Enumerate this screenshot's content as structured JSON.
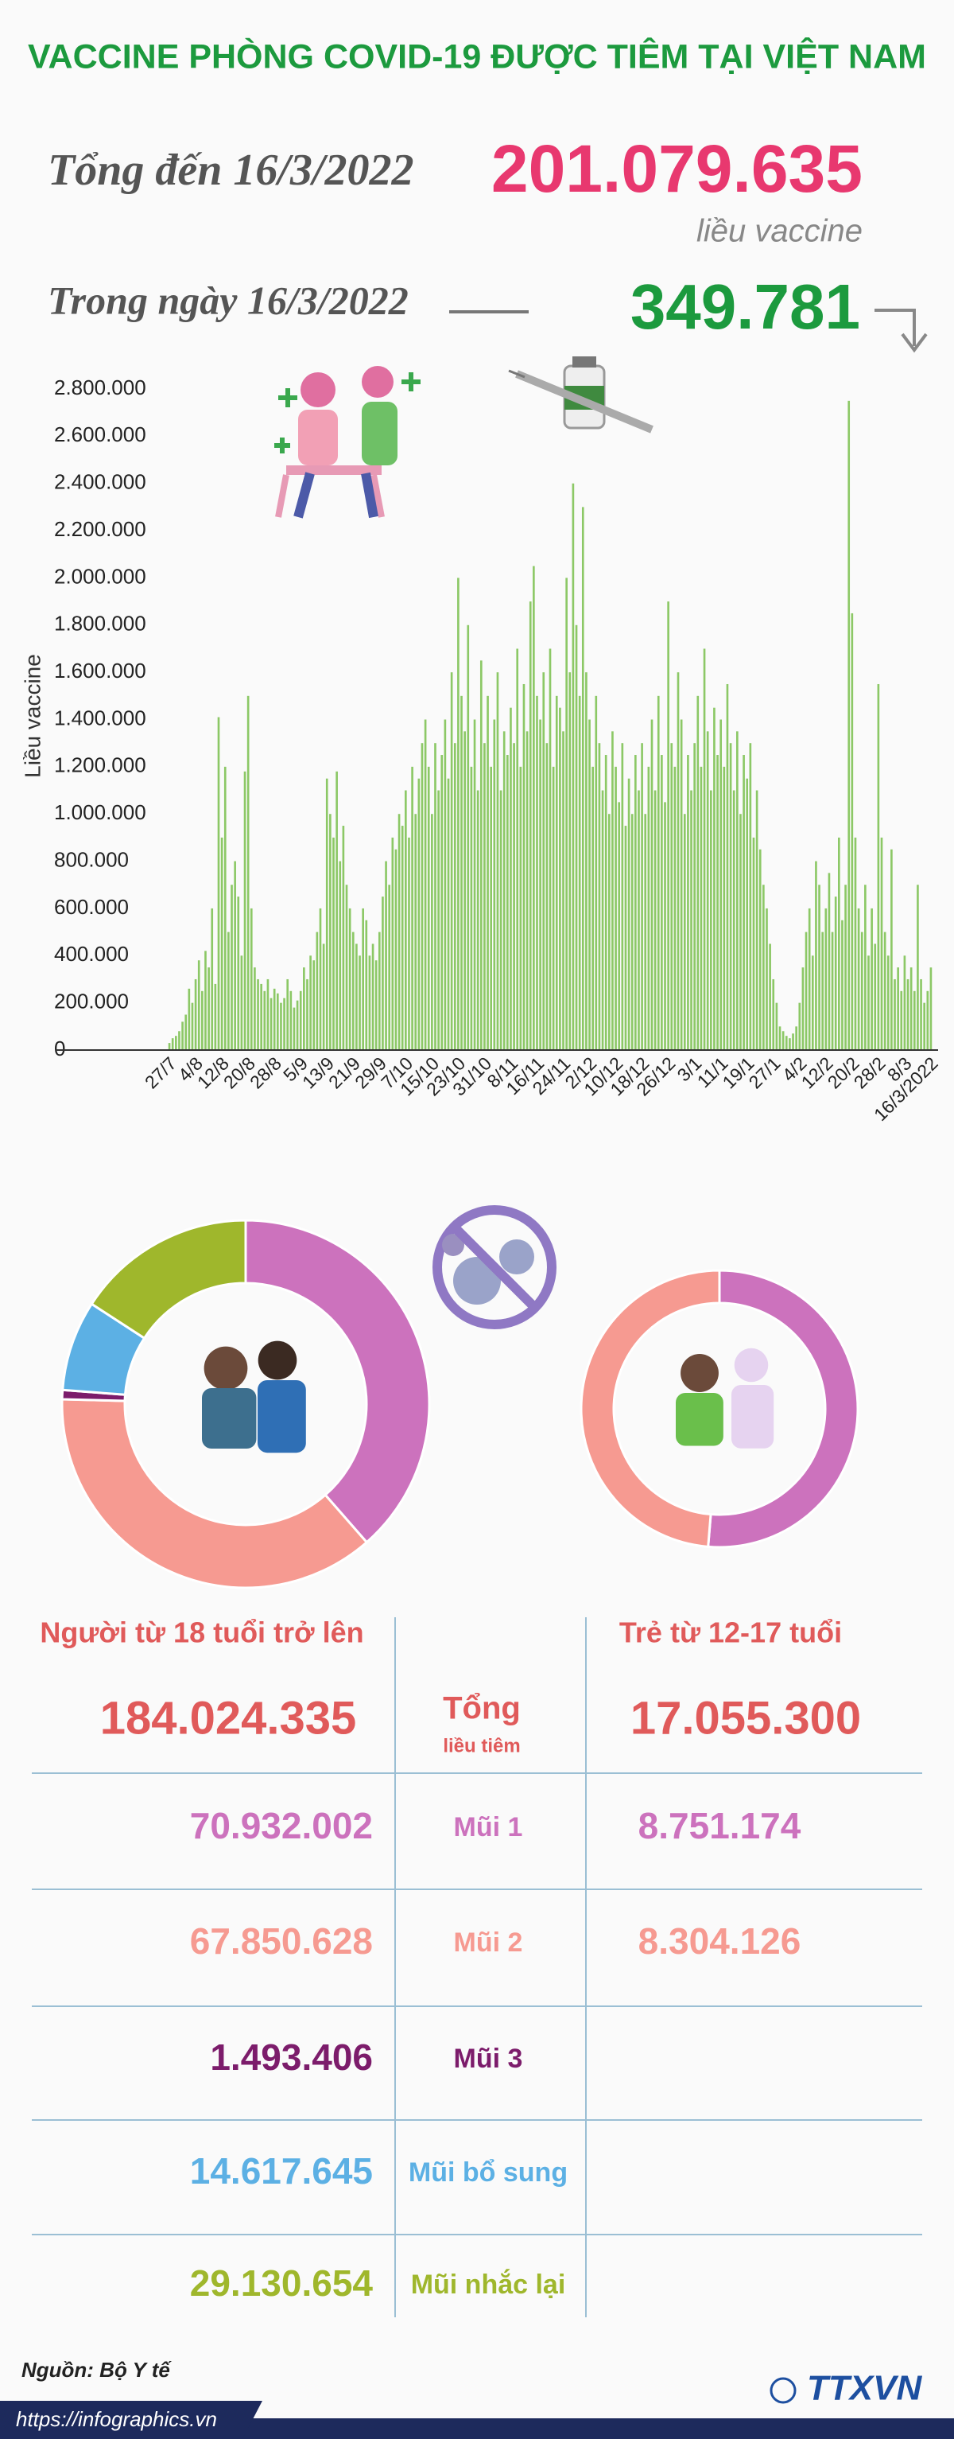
{
  "header": {
    "title": "VACCINE PHÒNG COVID-19 ĐƯỢC TIÊM TẠI VIỆT NAM",
    "total_label": "Tổng đến 16/3/2022",
    "total_value": "201.079.635",
    "total_unit": "liều vaccine",
    "daily_label": "Trong ngày 16/3/2022",
    "daily_value": "349.781"
  },
  "chart_data": [
    {
      "type": "bar",
      "y_label": "Liều vaccine",
      "color": "#8cc866",
      "ylim": [
        0,
        2800000
      ],
      "yticks": [
        0,
        {
          "value": 200000,
          "label": "200.000"
        },
        {
          "value": 400000,
          "label": "400.000"
        },
        {
          "value": 600000,
          "label": "600.000"
        },
        {
          "value": 800000,
          "label": "800.000"
        },
        {
          "value": 1000000,
          "label": "1.000.000"
        },
        {
          "value": 1200000,
          "label": "1.200.000"
        },
        {
          "value": 1400000,
          "label": "1.400.000"
        },
        {
          "value": 1600000,
          "label": "1.600.000"
        },
        {
          "value": 1800000,
          "label": "1.800.000"
        },
        {
          "value": 2000000,
          "label": "2.000.000"
        },
        {
          "value": 2200000,
          "label": "2.200.000"
        },
        {
          "value": 2400000,
          "label": "2.400.000"
        },
        {
          "value": 2600000,
          "label": "2.600.000"
        },
        {
          "value": 2800000,
          "label": "2.800.000"
        }
      ],
      "categories": [
        "27/7",
        null,
        null,
        null,
        null,
        null,
        null,
        null,
        "4/8",
        null,
        null,
        null,
        null,
        null,
        null,
        null,
        "12/8",
        null,
        null,
        null,
        null,
        null,
        null,
        null,
        "20/8",
        null,
        null,
        null,
        null,
        null,
        null,
        null,
        "28/8",
        null,
        null,
        null,
        null,
        null,
        null,
        null,
        "5/9",
        null,
        null,
        null,
        null,
        null,
        null,
        null,
        "13/9",
        null,
        null,
        null,
        null,
        null,
        null,
        null,
        "21/9",
        null,
        null,
        null,
        null,
        null,
        null,
        null,
        "29/9",
        null,
        null,
        null,
        null,
        null,
        null,
        null,
        "7/10",
        null,
        null,
        null,
        null,
        null,
        null,
        null,
        "15/10",
        null,
        null,
        null,
        null,
        null,
        null,
        null,
        "23/10",
        null,
        null,
        null,
        null,
        null,
        null,
        null,
        "31/10",
        null,
        null,
        null,
        null,
        null,
        null,
        null,
        "8/11",
        null,
        null,
        null,
        null,
        null,
        null,
        null,
        "16/11",
        null,
        null,
        null,
        null,
        null,
        null,
        null,
        "24/11",
        null,
        null,
        null,
        null,
        null,
        null,
        null,
        "2/12",
        null,
        null,
        null,
        null,
        null,
        null,
        null,
        "10/12",
        null,
        null,
        null,
        null,
        null,
        null,
        null,
        "18/12",
        null,
        null,
        null,
        null,
        null,
        null,
        null,
        "26/12",
        null,
        null,
        null,
        null,
        null,
        null,
        null,
        "3/1",
        null,
        null,
        null,
        null,
        null,
        null,
        null,
        "11/1",
        null,
        null,
        null,
        null,
        null,
        null,
        null,
        "19/1",
        null,
        null,
        null,
        null,
        null,
        null,
        null,
        "27/1",
        null,
        null,
        null,
        null,
        null,
        null,
        null,
        "4/2",
        null,
        null,
        null,
        null,
        null,
        null,
        null,
        "12/2",
        null,
        null,
        null,
        null,
        null,
        null,
        null,
        "20/2",
        null,
        null,
        null,
        null,
        null,
        null,
        null,
        "28/2",
        null,
        null,
        null,
        null,
        null,
        null,
        null,
        "8/3",
        null,
        null,
        null,
        null,
        null,
        null,
        null,
        "16/3/2022"
      ],
      "values": [
        30000,
        50000,
        60000,
        80000,
        120000,
        150000,
        260000,
        200000,
        300000,
        380000,
        250000,
        420000,
        350000,
        600000,
        280000,
        1410000,
        900000,
        1200000,
        500000,
        700000,
        800000,
        650000,
        400000,
        1180000,
        1500000,
        600000,
        350000,
        300000,
        280000,
        250000,
        300000,
        220000,
        260000,
        240000,
        200000,
        220000,
        300000,
        250000,
        180000,
        210000,
        250000,
        350000,
        300000,
        400000,
        380000,
        500000,
        600000,
        450000,
        1150000,
        1000000,
        900000,
        1180000,
        800000,
        950000,
        700000,
        600000,
        500000,
        450000,
        400000,
        600000,
        550000,
        400000,
        450000,
        380000,
        500000,
        650000,
        800000,
        700000,
        900000,
        850000,
        1000000,
        950000,
        1100000,
        900000,
        1200000,
        1000000,
        1150000,
        1300000,
        1400000,
        1200000,
        1000000,
        1300000,
        1100000,
        1250000,
        1400000,
        1150000,
        1600000,
        1300000,
        2000000,
        1500000,
        1350000,
        1800000,
        1200000,
        1400000,
        1100000,
        1650000,
        1300000,
        1500000,
        1200000,
        1400000,
        1600000,
        1100000,
        1350000,
        1250000,
        1450000,
        1300000,
        1700000,
        1200000,
        1550000,
        1350000,
        1900000,
        2050000,
        1500000,
        1400000,
        1600000,
        1300000,
        1700000,
        1200000,
        1500000,
        1450000,
        1350000,
        2000000,
        1600000,
        2400000,
        1800000,
        1500000,
        2300000,
        1600000,
        1400000,
        1200000,
        1500000,
        1300000,
        1100000,
        1250000,
        1000000,
        1350000,
        1200000,
        1050000,
        1300000,
        950000,
        1150000,
        1000000,
        1250000,
        1100000,
        1300000,
        1000000,
        1200000,
        1400000,
        1100000,
        1500000,
        1250000,
        1050000,
        1900000,
        1300000,
        1200000,
        1600000,
        1400000,
        1000000,
        1250000,
        1100000,
        1300000,
        1500000,
        1200000,
        1700000,
        1350000,
        1100000,
        1450000,
        1250000,
        1400000,
        1200000,
        1550000,
        1300000,
        1100000,
        1350000,
        1000000,
        1250000,
        1150000,
        1300000,
        900000,
        1100000,
        850000,
        700000,
        600000,
        450000,
        300000,
        200000,
        100000,
        80000,
        60000,
        50000,
        70000,
        100000,
        200000,
        350000,
        500000,
        600000,
        400000,
        800000,
        700000,
        500000,
        600000,
        750000,
        500000,
        650000,
        900000,
        550000,
        700000,
        2750000,
        1850000,
        900000,
        600000,
        500000,
        700000,
        400000,
        600000,
        450000,
        1550000,
        900000,
        500000,
        400000,
        850000,
        300000,
        350000,
        250000,
        400000,
        300000,
        350000,
        250000,
        700000,
        300000,
        200000,
        250000,
        349781
      ]
    },
    {
      "type": "pie",
      "donut": true,
      "title": "Người từ 18 tuổi trở lên",
      "categories": [
        "Mũi 1",
        "Mũi 2",
        "Mũi 3",
        "Mũi bổ sung",
        "Mũi nhắc lại"
      ],
      "values": [
        70932002,
        67850628,
        1493406,
        14617645,
        29130654
      ],
      "value_labels": [
        "70.932.002",
        "67.850.628",
        "1.493.406",
        "14.617.645",
        "29.130.654"
      ],
      "colors": [
        "#cc72bd",
        "#f69a91",
        "#7c1c6b",
        "#5cb0e4",
        "#9fb72c"
      ]
    },
    {
      "type": "pie",
      "donut": true,
      "title": "Trẻ từ 12-17 tuổi",
      "values": [
        8751174,
        8304126
      ],
      "value_labels": [
        "8.751.174",
        "8.304.126"
      ],
      "colors": [
        "#cc72bd",
        "#f69a91"
      ]
    }
  ],
  "table": {
    "total_label": "Tổng",
    "total_sub": "liều tiêm",
    "totals": [
      "184.024.335",
      "17.055.300"
    ]
  },
  "footer": {
    "source": "Nguồn: Bộ Y tế",
    "url": "https://infographics.vn",
    "logo": "TTXVN"
  }
}
